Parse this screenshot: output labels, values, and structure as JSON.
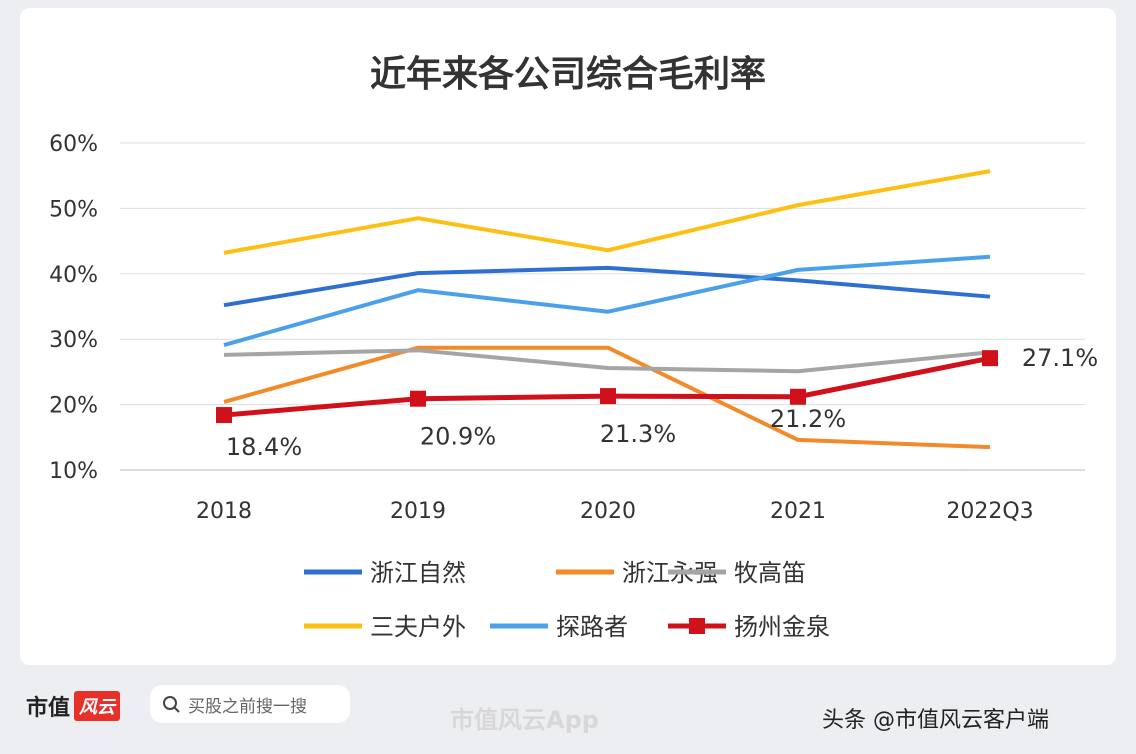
{
  "chart_data": {
    "type": "line",
    "title": "近年来各公司综合毛利率",
    "categories": [
      "2018",
      "2019",
      "2020",
      "2021",
      "2022Q3"
    ],
    "ylim": [
      10,
      60
    ],
    "yticks": [
      "10%",
      "20%",
      "30%",
      "40%",
      "50%",
      "60%"
    ],
    "grid": true,
    "legend_placement": "bottom",
    "series": [
      {
        "name": "浙江自然",
        "color": "#2f6fd0",
        "values": [
          35.2,
          40.1,
          40.9,
          39.0,
          36.5
        ]
      },
      {
        "name": "浙江永强",
        "color": "#f28a2a",
        "values": [
          20.4,
          28.7,
          28.7,
          14.6,
          13.5
        ]
      },
      {
        "name": "牧高笛",
        "color": "#a5a5a5",
        "values": [
          27.6,
          28.3,
          25.6,
          25.1,
          28.0
        ]
      },
      {
        "name": "三夫户外",
        "color": "#fdbf12",
        "values": [
          43.2,
          48.5,
          43.6,
          50.5,
          55.7
        ]
      },
      {
        "name": "探路者",
        "color": "#4aa1ea",
        "values": [
          29.1,
          37.5,
          34.2,
          40.6,
          42.6
        ]
      },
      {
        "name": "扬州金泉",
        "color": "#d0101a",
        "marker": "square",
        "values": [
          18.4,
          20.9,
          21.3,
          21.2,
          27.1
        ],
        "labels": [
          "18.4%",
          "20.9%",
          "21.3%",
          "21.2%",
          "27.1%"
        ]
      }
    ]
  },
  "footer": {
    "brand": "市值",
    "brand_badge": "风云",
    "search_placeholder": "买股之前搜一搜",
    "watermark": "市值风云App",
    "source": "头条 @市值风云客户端"
  }
}
